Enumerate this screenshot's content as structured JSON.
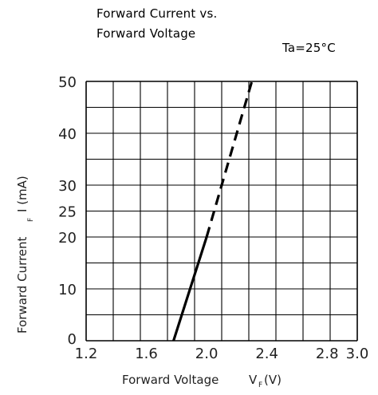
{
  "chart_data": {
    "type": "line",
    "title_line1": "Forward Current vs.",
    "title_line2": "Forward Voltage",
    "condition": "Ta=25°C",
    "xlabel": "Forward Voltage",
    "xlabel_symbol": "V",
    "xlabel_sub": "F",
    "xlabel_unit": "(V)",
    "ylabel": "Forward Current",
    "ylabel_sub": "F",
    "ylabel_symbol": "I (mA)",
    "xlim": [
      1.2,
      3.0
    ],
    "ylim": [
      0,
      50
    ],
    "x_ticks": [
      "1.2",
      "1.6",
      "2.0",
      "2.4",
      "2.8",
      "3.0"
    ],
    "x_tick_values": [
      1.2,
      1.6,
      2.0,
      2.4,
      2.8,
      3.0
    ],
    "y_ticks": [
      "0",
      "10",
      "20",
      "25",
      "30",
      "40",
      "50"
    ],
    "y_tick_values": [
      0,
      10,
      20,
      25,
      30,
      40,
      50
    ],
    "grid": true,
    "series": [
      {
        "style": "solid",
        "x": [
          1.78,
          2.0
        ],
        "y": [
          0,
          20
        ]
      },
      {
        "style": "dashed",
        "x": [
          2.0,
          2.3
        ],
        "y": [
          20,
          50
        ]
      }
    ]
  }
}
